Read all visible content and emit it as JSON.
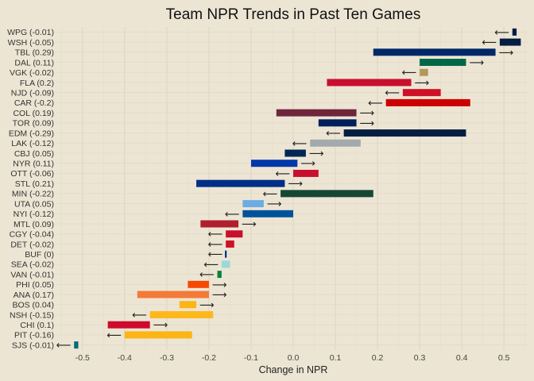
{
  "chart_data": {
    "type": "bar",
    "title": "Team NPR Trends in Past Ten Games",
    "xlabel": "Change in NPR",
    "ylabel": "",
    "xlim": [
      -0.56,
      0.56
    ],
    "xticks": [
      -0.5,
      -0.4,
      -0.3,
      -0.2,
      -0.1,
      0.0,
      0.1,
      0.2,
      0.3,
      0.4,
      0.5
    ],
    "xtick_labels": [
      "-0.5",
      "-0.4",
      "-0.3",
      "-0.2",
      "-0.1",
      "0.0",
      "0.1",
      "0.2",
      "0.3",
      "0.4",
      "0.5"
    ],
    "arrow_right": "⟶",
    "arrow_left": "⟵",
    "grid": true,
    "teams": [
      {
        "label": "WPG (-0.01)",
        "start": 0.53,
        "end": 0.52,
        "color": "#041e42"
      },
      {
        "label": "WSH (-0.05)",
        "start": 0.54,
        "end": 0.49,
        "color": "#041e42"
      },
      {
        "label": "TBL (0.29)",
        "start": 0.19,
        "end": 0.48,
        "color": "#002868"
      },
      {
        "label": "DAL (0.11)",
        "start": 0.3,
        "end": 0.41,
        "color": "#006847"
      },
      {
        "label": "VGK (-0.02)",
        "start": 0.32,
        "end": 0.3,
        "color": "#b4975a"
      },
      {
        "label": "FLA (0.2)",
        "start": 0.08,
        "end": 0.28,
        "color": "#c8102e"
      },
      {
        "label": "NJD (-0.09)",
        "start": 0.35,
        "end": 0.26,
        "color": "#ce1126"
      },
      {
        "label": "CAR (-0.2)",
        "start": 0.42,
        "end": 0.22,
        "color": "#cc0000"
      },
      {
        "label": "COL (0.19)",
        "start": -0.04,
        "end": 0.15,
        "color": "#6f263d"
      },
      {
        "label": "TOR (0.09)",
        "start": 0.06,
        "end": 0.15,
        "color": "#00205b"
      },
      {
        "label": "EDM (-0.29)",
        "start": 0.41,
        "end": 0.12,
        "color": "#041e42"
      },
      {
        "label": "LAK (-0.12)",
        "start": 0.16,
        "end": 0.04,
        "color": "#a2aaad"
      },
      {
        "label": "CBJ (0.05)",
        "start": -0.02,
        "end": 0.03,
        "color": "#002654"
      },
      {
        "label": "NYR (0.11)",
        "start": -0.1,
        "end": 0.01,
        "color": "#0038a8"
      },
      {
        "label": "OTT (-0.06)",
        "start": 0.06,
        "end": 0.0,
        "color": "#c8102e"
      },
      {
        "label": "STL (0.21)",
        "start": -0.23,
        "end": -0.02,
        "color": "#002f87"
      },
      {
        "label": "MIN (-0.22)",
        "start": 0.19,
        "end": -0.03,
        "color": "#154734"
      },
      {
        "label": "UTA (0.05)",
        "start": -0.12,
        "end": -0.07,
        "color": "#6cace4"
      },
      {
        "label": "NYI (-0.12)",
        "start": 0.0,
        "end": -0.12,
        "color": "#00539b"
      },
      {
        "label": "MTL (0.09)",
        "start": -0.22,
        "end": -0.13,
        "color": "#af1e2d"
      },
      {
        "label": "CGY (-0.04)",
        "start": -0.12,
        "end": -0.16,
        "color": "#c8102e"
      },
      {
        "label": "DET (-0.02)",
        "start": -0.14,
        "end": -0.16,
        "color": "#ce1126"
      },
      {
        "label": "BUF (0)",
        "start": -0.16,
        "end": -0.16,
        "color": "#003087"
      },
      {
        "label": "SEA (-0.02)",
        "start": -0.15,
        "end": -0.17,
        "color": "#99d9d9"
      },
      {
        "label": "VAN (-0.01)",
        "start": -0.17,
        "end": -0.18,
        "color": "#00843d"
      },
      {
        "label": "PHI (0.05)",
        "start": -0.25,
        "end": -0.2,
        "color": "#f74902"
      },
      {
        "label": "ANA (0.17)",
        "start": -0.37,
        "end": -0.2,
        "color": "#f47a38"
      },
      {
        "label": "BOS (0.04)",
        "start": -0.27,
        "end": -0.23,
        "color": "#fcb514"
      },
      {
        "label": "NSH (-0.15)",
        "start": -0.19,
        "end": -0.34,
        "color": "#ffb81c"
      },
      {
        "label": "CHI (0.1)",
        "start": -0.44,
        "end": -0.34,
        "color": "#cf0a2c"
      },
      {
        "label": "PIT (-0.16)",
        "start": -0.24,
        "end": -0.4,
        "color": "#fcb514"
      },
      {
        "label": "SJS (-0.01)",
        "start": -0.51,
        "end": -0.52,
        "color": "#006d75"
      }
    ]
  }
}
